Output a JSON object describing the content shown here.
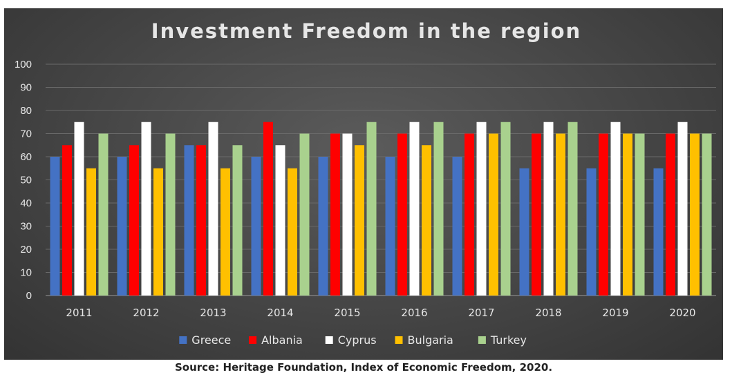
{
  "source": "Source: Heritage Foundation, Index of Economic Freedom, 2020.",
  "chart_data": {
    "type": "bar",
    "title": "Investment Freedom in the region",
    "xlabel": "",
    "ylabel": "",
    "ylim": [
      0,
      100
    ],
    "yticks": [
      0,
      10,
      20,
      30,
      40,
      50,
      60,
      70,
      80,
      90,
      100
    ],
    "grid": true,
    "legend_position": "bottom",
    "categories": [
      "2011",
      "2012",
      "2013",
      "2014",
      "2015",
      "2016",
      "2017",
      "2018",
      "2019",
      "2020"
    ],
    "series": [
      {
        "name": "Greece",
        "color": "#4472c4",
        "values": [
          60,
          60,
          65,
          60,
          60,
          60,
          60,
          55,
          55,
          55
        ]
      },
      {
        "name": "Albania",
        "color": "#ff0000",
        "values": [
          65,
          65,
          65,
          75,
          70,
          70,
          70,
          70,
          70,
          70
        ]
      },
      {
        "name": "Cyprus",
        "color": "#ffffff",
        "values": [
          75,
          75,
          75,
          65,
          70,
          75,
          75,
          75,
          75,
          75
        ]
      },
      {
        "name": "Bulgaria",
        "color": "#ffc000",
        "values": [
          55,
          55,
          55,
          55,
          65,
          65,
          70,
          70,
          70,
          70
        ]
      },
      {
        "name": "Turkey",
        "color": "#a9d18e",
        "values": [
          70,
          70,
          65,
          70,
          75,
          75,
          75,
          75,
          70,
          70
        ]
      }
    ]
  }
}
